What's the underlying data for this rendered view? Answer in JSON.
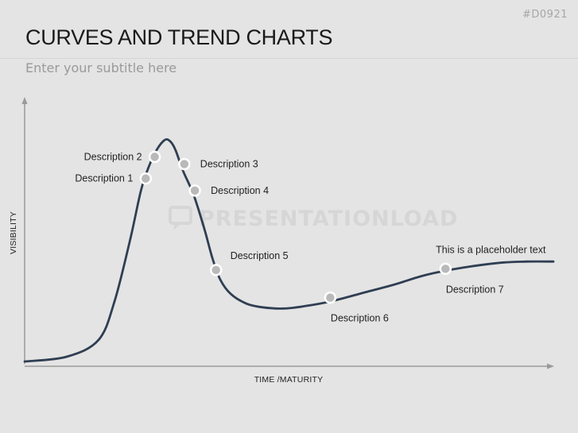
{
  "slide": {
    "id": "#D0921",
    "title": "CURVES AND TREND CHARTS",
    "subtitle": "Enter your subtitle here",
    "watermark": "PRESENTATIONLOAD"
  },
  "colors": {
    "background": "#e4e4e4",
    "curve": "#2f3e52",
    "axis": "#9a9a9a",
    "marker_stroke": "#ffffff",
    "marker_fill": "#b9b9b9"
  },
  "icons": {
    "watermark_logo": "speech-bubble-icon"
  },
  "chart_data": {
    "type": "line",
    "xlabel": "TIME /MATURITY",
    "ylabel": "VISIBILITY",
    "xlim": [
      0,
      100
    ],
    "ylim": [
      0,
      100
    ],
    "grid": false,
    "series": [
      {
        "x": [
          0,
          8,
          14,
          17,
          20,
          22,
          23.5,
          25,
          26.5,
          27.5,
          28.5,
          30,
          32,
          34,
          35.5,
          37,
          39,
          42,
          45,
          49,
          53,
          58,
          64,
          70,
          76,
          83,
          90,
          95,
          100
        ],
        "y": [
          1,
          3,
          10,
          26,
          52,
          72,
          82,
          89,
          93,
          92.5,
          89,
          80,
          70,
          56,
          44,
          35,
          29,
          25,
          23.5,
          23,
          24,
          26,
          29.5,
          33,
          37,
          40,
          42,
          42.5,
          42.5
        ]
      }
    ],
    "annotations": [
      {
        "label": "Description 1",
        "x": 22.9,
        "y": 77,
        "side": "left"
      },
      {
        "label": "Description 2",
        "x": 24.6,
        "y": 86,
        "side": "left"
      },
      {
        "label": "Description 3",
        "x": 30.2,
        "y": 83,
        "side": "right"
      },
      {
        "label": "Description 4",
        "x": 32.2,
        "y": 72,
        "side": "right"
      },
      {
        "label": "Description 5",
        "x": 36.2,
        "y": 39,
        "side": "right-above"
      },
      {
        "label": "Description 6",
        "x": 57.8,
        "y": 27.5,
        "side": "below"
      },
      {
        "label": "Description 7",
        "x": 79.6,
        "y": 39.5,
        "side": "below"
      },
      {
        "label": "This is a placeholder text",
        "x": 79.6,
        "y": 39.5,
        "side": "above"
      }
    ]
  }
}
